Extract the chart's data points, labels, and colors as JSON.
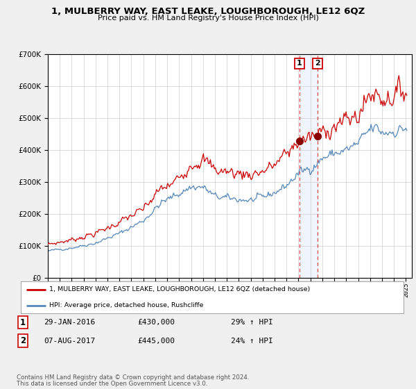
{
  "title": "1, MULBERRY WAY, EAST LEAKE, LOUGHBOROUGH, LE12 6QZ",
  "subtitle": "Price paid vs. HM Land Registry's House Price Index (HPI)",
  "legend_line1": "1, MULBERRY WAY, EAST LEAKE, LOUGHBOROUGH, LE12 6QZ (detached house)",
  "legend_line2": "HPI: Average price, detached house, Rushcliffe",
  "footer1": "Contains HM Land Registry data © Crown copyright and database right 2024.",
  "footer2": "This data is licensed under the Open Government Licence v3.0.",
  "transaction1_label": "1",
  "transaction1_date": "29-JAN-2016",
  "transaction1_price": "£430,000",
  "transaction1_hpi": "29% ↑ HPI",
  "transaction1_x": 2016.08,
  "transaction1_y": 430000,
  "transaction2_label": "2",
  "transaction2_date": "07-AUG-2017",
  "transaction2_price": "£445,000",
  "transaction2_hpi": "24% ↑ HPI",
  "transaction2_x": 2017.6,
  "transaction2_y": 445000,
  "red_color": "#cc0000",
  "blue_color": "#5588bb",
  "dashed_color": "#dd4444",
  "background_color": "#f0f0f0",
  "plot_bg_color": "#ffffff",
  "ylim": [
    0,
    700000
  ],
  "xlim_start": 1995,
  "xlim_end": 2025.5
}
